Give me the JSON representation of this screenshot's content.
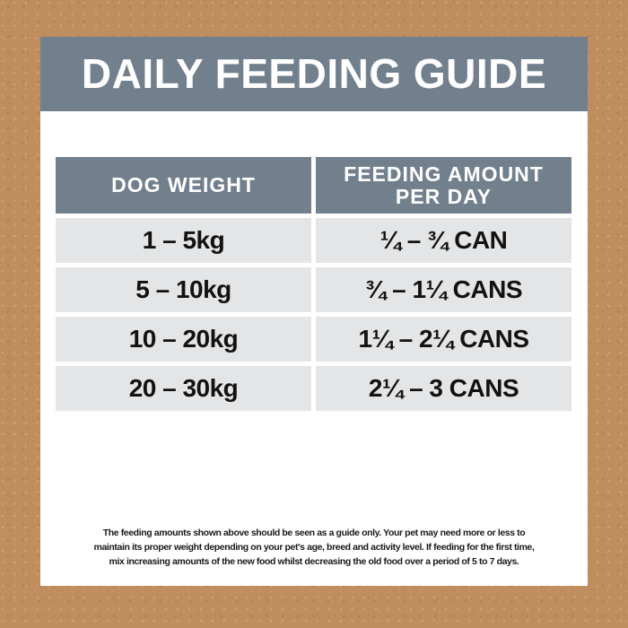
{
  "title": "DAILY FEEDING GUIDE",
  "table": {
    "headers": {
      "weight": "DOG WEIGHT",
      "amount": "FEEDING AMOUNT\nPER DAY"
    },
    "rows": [
      {
        "weight": "1 – 5kg",
        "amount": "¼ – ¾ CAN"
      },
      {
        "weight": "5 – 10kg",
        "amount": "¾ – 1¼ CANS"
      },
      {
        "weight": "10 – 20kg",
        "amount": "1¼ – 2¼ CANS"
      },
      {
        "weight": "20 – 30kg",
        "amount": "2¼ – 3 CANS"
      }
    ]
  },
  "footer": {
    "lines": [
      "The feeding amounts shown above should be seen as a guide only. Your pet may need more or less to",
      "maintain its proper weight depending on your pet's age, breed and activity level. If feeding for the first time,",
      "mix increasing amounts of the new food whilst decreasing the old food over a period of 5 to 7 days."
    ]
  },
  "colors": {
    "background_tan": "#BF8D5E",
    "header_slate": "#72808E",
    "row_gray": "#E4E5E6",
    "panel_white": "#FFFFFF",
    "text_dark": "#1A1A1A",
    "title_text": "#FFFFFF"
  }
}
